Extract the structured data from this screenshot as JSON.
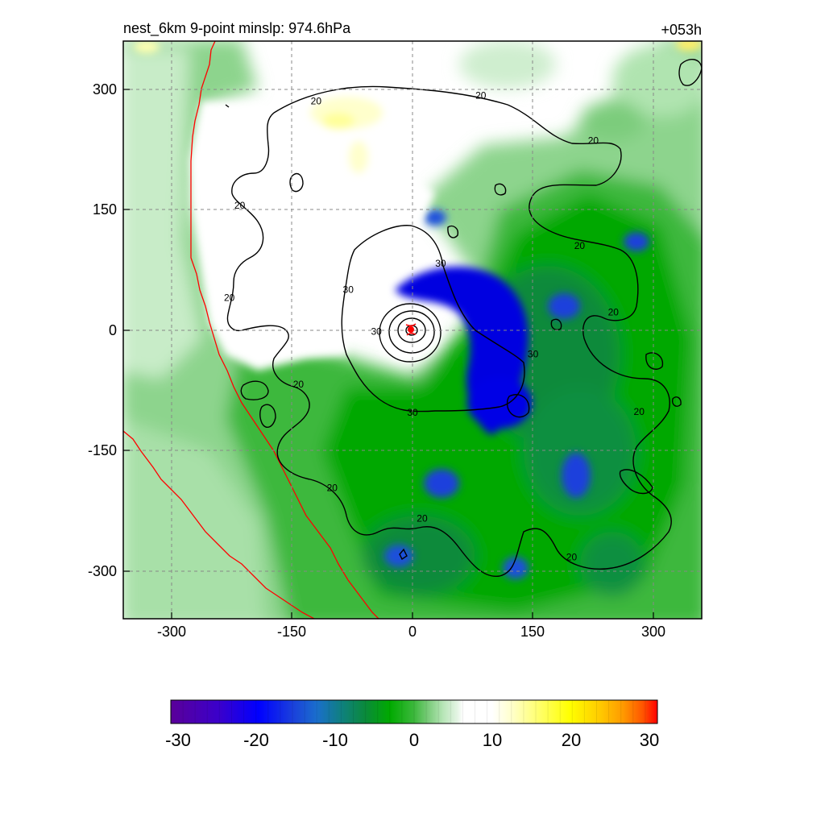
{
  "chart_data": {
    "type": "heatmap",
    "title": "nest_6km  9-point minslp: 974.6hPa",
    "time_label": "+053h",
    "x_ticks": [
      -300,
      -150,
      0,
      150,
      300
    ],
    "y_ticks": [
      300,
      150,
      0,
      -150,
      -300
    ],
    "xlim": [
      -360,
      360
    ],
    "ylim": [
      -360,
      360
    ],
    "grid": true,
    "storm_center": [
      0,
      0
    ],
    "contour_labels": [
      {
        "text": "20",
        "x": -120,
        "y": 285
      },
      {
        "text": "20",
        "x": 85,
        "y": 292
      },
      {
        "text": "20",
        "x": 225,
        "y": 236
      },
      {
        "text": "20",
        "x": -215,
        "y": 155
      },
      {
        "text": "20",
        "x": -228,
        "y": 40
      },
      {
        "text": "20",
        "x": 208,
        "y": 105
      },
      {
        "text": "20",
        "x": 250,
        "y": 22
      },
      {
        "text": "20",
        "x": -142,
        "y": -68
      },
      {
        "text": "20",
        "x": 282,
        "y": -102
      },
      {
        "text": "20",
        "x": -100,
        "y": -197
      },
      {
        "text": "20",
        "x": 12,
        "y": -235
      },
      {
        "text": "20",
        "x": 198,
        "y": -283
      },
      {
        "text": "30",
        "x": -80,
        "y": 50
      },
      {
        "text": "30",
        "x": 35,
        "y": 83
      },
      {
        "text": "30",
        "x": -45,
        "y": -2
      },
      {
        "text": "30",
        "x": 150,
        "y": -30
      },
      {
        "text": "30",
        "x": 0,
        "y": -103
      }
    ],
    "colorbar": {
      "ticks": [
        -30,
        -20,
        -10,
        0,
        10,
        20,
        30
      ],
      "range": [
        -30,
        30
      ]
    },
    "colormap_colors": [
      "#5a0099",
      "#1a1aff",
      "#0000e6",
      "#1a6ecc",
      "#0f8080",
      "#0a8a3a",
      "#00aa00",
      "#3cb83c",
      "#7ccc7c",
      "#b8e6b8",
      "#e6f5e6",
      "#ffffff",
      "#ffffcc",
      "#ffff66",
      "#ffff00",
      "#ffcc00",
      "#ff9900",
      "#ff6600",
      "#ff3300",
      "#ff0000"
    ],
    "coastline_color": "#ff0000"
  }
}
